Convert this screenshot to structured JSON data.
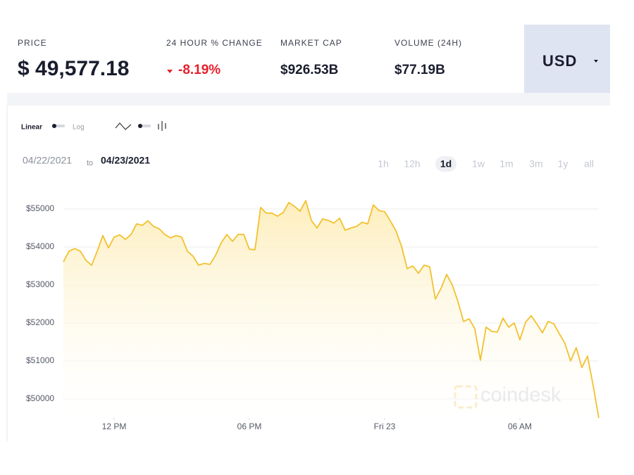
{
  "header": {
    "stats": [
      {
        "label": "PRICE",
        "value": "$ 49,577.18"
      },
      {
        "label": "24 HOUR % CHANGE",
        "value": "-8.19%"
      },
      {
        "label": "MARKET CAP",
        "value": "$926.53B"
      },
      {
        "label": "VOLUME (24H)",
        "value": "$77.19B"
      }
    ],
    "currency": "USD"
  },
  "controls": {
    "scale_options": [
      "Linear",
      "Log"
    ],
    "range_start": "04/22/2021",
    "range_connector": "to",
    "range_end": "04/23/2021",
    "ranges": [
      "1h",
      "12h",
      "1d",
      "1w",
      "1m",
      "3m",
      "1y",
      "all"
    ],
    "selected_range": "1d"
  },
  "chart_data": {
    "type": "line",
    "color": "#f2c12e",
    "grid": true,
    "watermark": "coindesk",
    "x": [
      9.75,
      10,
      10.25,
      10.5,
      10.75,
      11,
      11.25,
      11.5,
      11.75,
      12,
      12.25,
      12.5,
      12.75,
      13,
      13.25,
      13.5,
      13.75,
      14,
      14.25,
      14.5,
      14.75,
      15,
      15.25,
      15.5,
      15.75,
      16,
      16.25,
      16.5,
      16.75,
      17,
      17.25,
      17.5,
      17.75,
      18,
      18.25,
      18.5,
      18.75,
      19,
      19.25,
      19.5,
      19.75,
      20,
      20.25,
      20.5,
      20.75,
      21,
      21.25,
      21.5,
      21.75,
      22,
      22.25,
      22.5,
      22.75,
      23,
      23.25,
      23.5,
      23.75,
      24,
      24.25,
      24.5,
      24.75,
      25,
      25.25,
      25.5,
      25.75,
      26,
      26.25,
      26.5,
      26.75,
      27,
      27.25,
      27.5,
      27.75,
      28,
      28.25,
      28.5,
      28.75,
      29,
      29.25,
      29.5,
      29.75,
      30,
      30.25,
      30.5,
      30.75,
      31,
      31.25,
      31.5,
      31.75,
      32,
      32.25,
      32.5,
      32.75,
      33,
      33.25,
      33.5
    ],
    "values": [
      53610,
      53890,
      53960,
      53890,
      53650,
      53520,
      53890,
      54300,
      53980,
      54260,
      54320,
      54200,
      54330,
      54610,
      54570,
      54690,
      54540,
      54480,
      54330,
      54240,
      54300,
      54260,
      53890,
      53760,
      53520,
      53570,
      53540,
      53780,
      54110,
      54330,
      54150,
      54330,
      54330,
      53940,
      53930,
      55040,
      54890,
      54890,
      54810,
      54910,
      55170,
      55070,
      54940,
      55220,
      54700,
      54500,
      54740,
      54700,
      54630,
      54760,
      54440,
      54500,
      54540,
      54650,
      54610,
      55110,
      54960,
      54930,
      54690,
      54430,
      54020,
      53430,
      53500,
      53310,
      53520,
      53480,
      52630,
      52910,
      53280,
      53000,
      52570,
      52040,
      52110,
      51850,
      51020,
      51890,
      51780,
      51760,
      52130,
      51890,
      52000,
      51560,
      52020,
      52190,
      51980,
      51740,
      52040,
      51980,
      51720,
      51460,
      51000,
      51350,
      50830,
      51130,
      50350,
      49500
    ],
    "xlim": [
      9.75,
      33.5
    ],
    "xticks": [
      {
        "value": 12,
        "label": "12 PM"
      },
      {
        "value": 18,
        "label": "06 PM"
      },
      {
        "value": 24,
        "label": "Fri 23"
      },
      {
        "value": 30,
        "label": "06 AM"
      }
    ],
    "ylim": [
      49500,
      55500
    ],
    "yticks": [
      {
        "value": 50000,
        "label": "$50000"
      },
      {
        "value": 51000,
        "label": "$51000"
      },
      {
        "value": 52000,
        "label": "$52000"
      },
      {
        "value": 53000,
        "label": "$53000"
      },
      {
        "value": 54000,
        "label": "$54000"
      },
      {
        "value": 55000,
        "label": "$55000"
      }
    ]
  }
}
